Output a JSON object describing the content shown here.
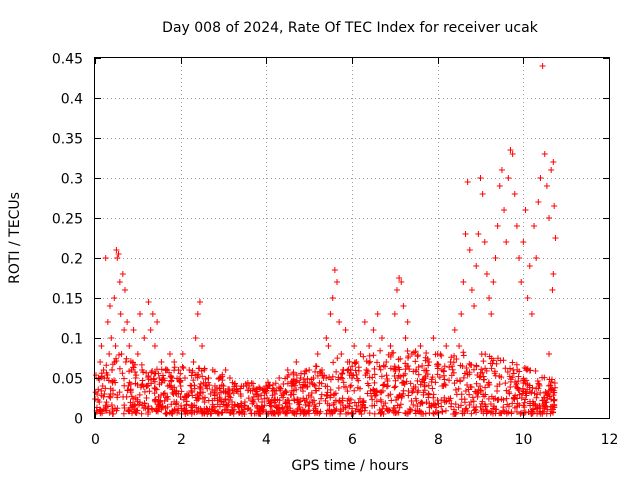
{
  "chart_data": {
    "type": "scatter",
    "title": "Day 008 of 2024, Rate Of TEC Index for receiver ucak",
    "xlabel": "GPS time / hours",
    "ylabel": "ROTI / TECUs",
    "xlim": [
      0,
      12
    ],
    "ylim": [
      0,
      0.45
    ],
    "xticks": [
      0,
      2,
      4,
      6,
      8,
      10,
      12
    ],
    "yticks": [
      0,
      0.05,
      0.1,
      0.15,
      0.2,
      0.25,
      0.3,
      0.35,
      0.4,
      0.45
    ],
    "xtick_labels": [
      "0",
      "2",
      "4",
      "6",
      "8",
      "10",
      "12"
    ],
    "ytick_labels": [
      "0",
      "0.05",
      "0.1",
      "0.15",
      "0.2",
      "0.25",
      "0.3",
      "0.35",
      "0.4",
      "0.45"
    ],
    "grid": true,
    "marker": "+",
    "color": "#ff0000",
    "series": [
      {
        "values": [
          [
            0.05,
            0.03
          ],
          [
            0.08,
            0.05
          ],
          [
            0.1,
            0.02
          ],
          [
            0.12,
            0.07
          ],
          [
            0.15,
            0.09
          ],
          [
            0.18,
            0.04
          ],
          [
            0.2,
            0.06
          ],
          [
            0.22,
            0.03
          ],
          [
            0.25,
            0.2
          ],
          [
            0.28,
            0.05
          ],
          [
            0.3,
            0.12
          ],
          [
            0.33,
            0.08
          ],
          [
            0.35,
            0.14
          ],
          [
            0.38,
            0.1
          ],
          [
            0.4,
            0.06
          ],
          [
            0.42,
            0.03
          ],
          [
            0.45,
            0.15
          ],
          [
            0.48,
            0.09
          ],
          [
            0.5,
            0.21
          ],
          [
            0.52,
            0.2
          ],
          [
            0.55,
            0.205
          ],
          [
            0.58,
            0.17
          ],
          [
            0.6,
            0.13
          ],
          [
            0.62,
            0.08
          ],
          [
            0.65,
            0.18
          ],
          [
            0.68,
            0.11
          ],
          [
            0.7,
            0.16
          ],
          [
            0.72,
            0.07
          ],
          [
            0.75,
            0.12
          ],
          [
            0.78,
            0.04
          ],
          [
            0.8,
            0.09
          ],
          [
            0.85,
            0.06
          ],
          [
            0.9,
            0.11
          ],
          [
            0.95,
            0.05
          ],
          [
            1.0,
            0.08
          ],
          [
            1.05,
            0.13
          ],
          [
            1.1,
            0.06
          ],
          [
            1.15,
            0.1
          ],
          [
            1.2,
            0.04
          ],
          [
            1.25,
            0.145
          ],
          [
            1.3,
            0.11
          ],
          [
            1.35,
            0.13
          ],
          [
            1.4,
            0.09
          ],
          [
            1.45,
            0.12
          ],
          [
            1.5,
            0.05
          ],
          [
            1.55,
            0.07
          ],
          [
            1.6,
            0.03
          ],
          [
            1.65,
            0.06
          ],
          [
            1.7,
            0.04
          ],
          [
            1.75,
            0.08
          ],
          [
            1.8,
            0.05
          ],
          [
            1.85,
            0.07
          ],
          [
            1.9,
            0.03
          ],
          [
            1.95,
            0.06
          ],
          [
            2.0,
            0.04
          ],
          [
            2.05,
            0.08
          ],
          [
            2.1,
            0.05
          ],
          [
            2.15,
            0.03
          ],
          [
            2.2,
            0.06
          ],
          [
            2.25,
            0.04
          ],
          [
            2.3,
            0.07
          ],
          [
            2.35,
            0.1
          ],
          [
            2.4,
            0.13
          ],
          [
            2.45,
            0.145
          ],
          [
            2.5,
            0.09
          ],
          [
            2.55,
            0.06
          ],
          [
            2.6,
            0.04
          ],
          [
            2.65,
            0.05
          ],
          [
            2.7,
            0.03
          ],
          [
            2.75,
            0.06
          ],
          [
            2.8,
            0.04
          ],
          [
            2.85,
            0.03
          ],
          [
            2.9,
            0.05
          ],
          [
            2.95,
            0.02
          ],
          [
            3.0,
            0.04
          ],
          [
            3.05,
            0.06
          ],
          [
            3.1,
            0.03
          ],
          [
            3.15,
            0.05
          ],
          [
            3.2,
            0.02
          ],
          [
            3.3,
            0.04
          ],
          [
            3.4,
            0.03
          ],
          [
            3.5,
            0.02
          ],
          [
            3.6,
            0.04
          ],
          [
            3.7,
            0.02
          ],
          [
            3.8,
            0.03
          ],
          [
            3.9,
            0.02
          ],
          [
            4.0,
            0.04
          ],
          [
            4.1,
            0.02
          ],
          [
            4.2,
            0.03
          ],
          [
            4.3,
            0.05
          ],
          [
            4.4,
            0.03
          ],
          [
            4.5,
            0.06
          ],
          [
            4.6,
            0.04
          ],
          [
            4.7,
            0.07
          ],
          [
            4.8,
            0.05
          ],
          [
            4.9,
            0.04
          ],
          [
            5.0,
            0.06
          ],
          [
            5.1,
            0.05
          ],
          [
            5.2,
            0.08
          ],
          [
            5.3,
            0.06
          ],
          [
            5.4,
            0.1
          ],
          [
            5.45,
            0.09
          ],
          [
            5.5,
            0.13
          ],
          [
            5.55,
            0.15
          ],
          [
            5.6,
            0.185
          ],
          [
            5.65,
            0.17
          ],
          [
            5.7,
            0.12
          ],
          [
            5.75,
            0.08
          ],
          [
            5.8,
            0.06
          ],
          [
            5.85,
            0.11
          ],
          [
            5.9,
            0.07
          ],
          [
            6.0,
            0.05
          ],
          [
            6.05,
            0.09
          ],
          [
            6.1,
            0.07
          ],
          [
            6.2,
            0.08
          ],
          [
            6.3,
            0.12
          ],
          [
            6.4,
            0.09
          ],
          [
            6.5,
            0.11
          ],
          [
            6.6,
            0.13
          ],
          [
            6.7,
            0.1
          ],
          [
            6.8,
            0.07
          ],
          [
            6.9,
            0.09
          ],
          [
            7.0,
            0.13
          ],
          [
            7.05,
            0.16
          ],
          [
            7.1,
            0.175
          ],
          [
            7.15,
            0.17
          ],
          [
            7.2,
            0.14
          ],
          [
            7.25,
            0.1
          ],
          [
            7.3,
            0.12
          ],
          [
            7.4,
            0.08
          ],
          [
            7.5,
            0.06
          ],
          [
            7.6,
            0.09
          ],
          [
            7.7,
            0.05
          ],
          [
            7.8,
            0.07
          ],
          [
            7.9,
            0.1
          ],
          [
            8.0,
            0.08
          ],
          [
            8.1,
            0.06
          ],
          [
            8.2,
            0.09
          ],
          [
            8.3,
            0.07
          ],
          [
            8.4,
            0.11
          ],
          [
            8.5,
            0.09
          ],
          [
            8.55,
            0.13
          ],
          [
            8.6,
            0.17
          ],
          [
            8.65,
            0.23
          ],
          [
            8.7,
            0.295
          ],
          [
            8.75,
            0.21
          ],
          [
            8.8,
            0.16
          ],
          [
            8.85,
            0.14
          ],
          [
            8.9,
            0.19
          ],
          [
            8.95,
            0.23
          ],
          [
            9.0,
            0.3
          ],
          [
            9.05,
            0.28
          ],
          [
            9.1,
            0.22
          ],
          [
            9.15,
            0.18
          ],
          [
            9.2,
            0.15
          ],
          [
            9.25,
            0.13
          ],
          [
            9.3,
            0.17
          ],
          [
            9.35,
            0.2
          ],
          [
            9.4,
            0.24
          ],
          [
            9.45,
            0.29
          ],
          [
            9.5,
            0.31
          ],
          [
            9.55,
            0.26
          ],
          [
            9.6,
            0.22
          ],
          [
            9.65,
            0.3
          ],
          [
            9.7,
            0.335
          ],
          [
            9.75,
            0.33
          ],
          [
            9.8,
            0.28
          ],
          [
            9.85,
            0.24
          ],
          [
            9.9,
            0.2
          ],
          [
            9.95,
            0.17
          ],
          [
            10.0,
            0.22
          ],
          [
            10.05,
            0.26
          ],
          [
            10.1,
            0.15
          ],
          [
            10.15,
            0.19
          ],
          [
            10.2,
            0.13
          ],
          [
            10.25,
            0.24
          ],
          [
            10.3,
            0.2
          ],
          [
            10.35,
            0.27
          ],
          [
            10.4,
            0.3
          ],
          [
            10.45,
            0.44
          ],
          [
            10.5,
            0.33
          ],
          [
            10.55,
            0.29
          ],
          [
            10.6,
            0.25
          ],
          [
            10.65,
            0.31
          ],
          [
            10.7,
            0.32
          ],
          [
            10.72,
            0.265
          ],
          [
            10.75,
            0.225
          ],
          [
            10.7,
            0.18
          ],
          [
            10.68,
            0.16
          ],
          [
            10.6,
            0.08
          ]
        ]
      }
    ],
    "dense_band": {
      "description_ceiling": [
        [
          0.0,
          0.06
        ],
        [
          0.5,
          0.08
        ],
        [
          1.0,
          0.07
        ],
        [
          1.5,
          0.06
        ],
        [
          2.0,
          0.06
        ],
        [
          2.5,
          0.06
        ],
        [
          3.0,
          0.05
        ],
        [
          3.5,
          0.04
        ],
        [
          4.0,
          0.04
        ],
        [
          4.5,
          0.05
        ],
        [
          5.0,
          0.06
        ],
        [
          5.5,
          0.07
        ],
        [
          6.0,
          0.07
        ],
        [
          6.5,
          0.08
        ],
        [
          7.0,
          0.08
        ],
        [
          7.5,
          0.08
        ],
        [
          8.0,
          0.08
        ],
        [
          8.5,
          0.08
        ],
        [
          9.0,
          0.08
        ],
        [
          9.5,
          0.07
        ],
        [
          10.0,
          0.06
        ],
        [
          10.5,
          0.05
        ],
        [
          10.75,
          0.04
        ]
      ]
    }
  }
}
